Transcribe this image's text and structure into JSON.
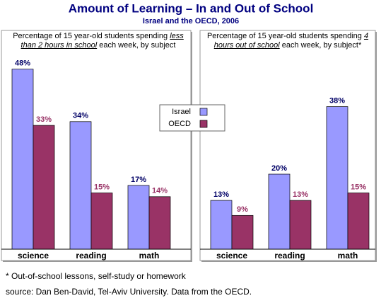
{
  "title": "Amount of Learning – In and Out of School",
  "subtitle": "Israel and the OECD, 2006",
  "footnote": "* Out-of-school lessons, self-study or homework",
  "source": "source: Dan Ben-David, Tel-Aviv University.  Data from the OECD.",
  "chart_data": [
    {
      "type": "bar",
      "note_parts": [
        "Percentage of 15 year-old students spending",
        "less than 2 hours in school",
        "each week, by subject"
      ],
      "categories": [
        "science",
        "reading",
        "math"
      ],
      "ylim": [
        0,
        50
      ],
      "series": [
        {
          "name": "Israel",
          "color": "#9999ff",
          "label_color": "#000066",
          "values": [
            48,
            34,
            17
          ],
          "value_labels": [
            "48%",
            "34%",
            "17%"
          ]
        },
        {
          "name": "OECD",
          "color": "#993366",
          "label_color": "#993366",
          "values": [
            33,
            15,
            14
          ],
          "value_labels": [
            "33%",
            "15%",
            "14%"
          ]
        }
      ]
    },
    {
      "type": "bar",
      "note_parts": [
        "Percentage of 15 year-old students spending",
        "4 hours out of school",
        "each week, by subject*"
      ],
      "categories": [
        "science",
        "reading",
        "math"
      ],
      "ylim": [
        0,
        50
      ],
      "series": [
        {
          "color": "#9999ff",
          "label_color": "#000066",
          "values": [
            13,
            20,
            38
          ],
          "value_labels": [
            "13%",
            "20%",
            "38%"
          ]
        },
        {
          "color": "#993366",
          "label_color": "#993366",
          "values": [
            9,
            13,
            15
          ],
          "value_labels": [
            "9%",
            "13%",
            "15%"
          ]
        }
      ]
    }
  ]
}
